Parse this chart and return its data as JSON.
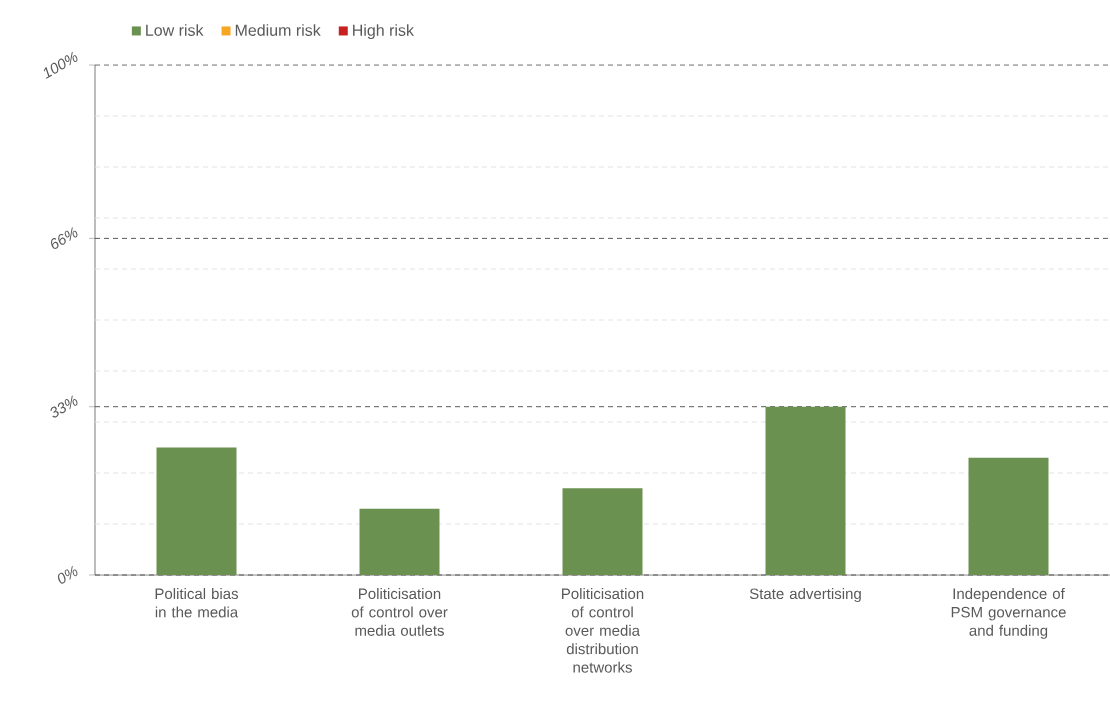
{
  "chart_data": {
    "type": "bar",
    "categories": [
      "Political bias in the media",
      "Politicisation of control over media outlets",
      "Politicisation of control over media distribution networks",
      "State advertising",
      "Independence of PSM governance and funding"
    ],
    "series": [
      {
        "name": "Low risk",
        "color": "#6a9150",
        "values": [
          25,
          13,
          17,
          33,
          23
        ]
      },
      {
        "name": "Medium risk",
        "color": "#f5a623",
        "values": [
          null,
          null,
          null,
          null,
          null
        ]
      },
      {
        "name": "High risk",
        "color": "#c8201e",
        "values": [
          null,
          null,
          null,
          null,
          null
        ]
      }
    ],
    "ylim": [
      0,
      100
    ],
    "yticks": [
      {
        "value": 0,
        "label": "0%"
      },
      {
        "value": 10,
        "label": null
      },
      {
        "value": 20,
        "label": null
      },
      {
        "value": 33,
        "label": "33%"
      },
      {
        "value": 30,
        "label": null
      },
      {
        "value": 40,
        "label": null
      },
      {
        "value": 50,
        "label": null
      },
      {
        "value": 60,
        "label": null
      },
      {
        "value": 66,
        "label": "66%"
      },
      {
        "value": 70,
        "label": null
      },
      {
        "value": 80,
        "label": null
      },
      {
        "value": 90,
        "label": null
      },
      {
        "value": 100,
        "label": "100%"
      }
    ],
    "grid": "y",
    "legend": "top"
  }
}
